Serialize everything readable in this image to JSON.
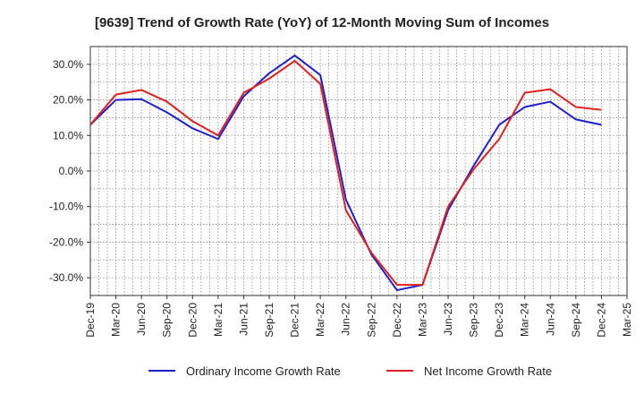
{
  "chart_data": {
    "type": "line",
    "title": "[9639]  Trend of Growth Rate (YoY) of 12-Month Moving Sum of Incomes",
    "xlabel": "",
    "ylabel": "",
    "ylim": [
      -35,
      35
    ],
    "y_ticks": [
      -30,
      -20,
      -10,
      0,
      10,
      20,
      30
    ],
    "y_tick_labels": [
      "-30.0%",
      "-20.0%",
      "-10.0%",
      "0.0%",
      "10.0%",
      "20.0%",
      "30.0%"
    ],
    "x_tick_labels": [
      "Dec-19",
      "Mar-20",
      "Jun-20",
      "Sep-20",
      "Dec-20",
      "Mar-21",
      "Jun-21",
      "Sep-21",
      "Dec-21",
      "Mar-22",
      "Jun-22",
      "Sep-22",
      "Dec-22",
      "Mar-23",
      "Jun-23",
      "Sep-23",
      "Dec-23",
      "Mar-24",
      "Jun-24",
      "Sep-24",
      "Dec-24",
      "Mar-25"
    ],
    "grid": true,
    "legend_position": "bottom",
    "series": [
      {
        "name": "Ordinary Income Growth Rate",
        "color": "#1f1fcc",
        "x": [
          "Dec-19",
          "Mar-20",
          "Jun-20",
          "Sep-20",
          "Dec-20",
          "Mar-21",
          "Jun-21",
          "Sep-21",
          "Dec-21",
          "Mar-22",
          "Jun-22",
          "Sep-22",
          "Dec-22",
          "Mar-23",
          "Jun-23",
          "Sep-23",
          "Dec-23",
          "Mar-24",
          "Jun-24",
          "Sep-24",
          "Dec-24"
        ],
        "values": [
          13.0,
          20.0,
          20.2,
          16.5,
          12.0,
          9.0,
          21.0,
          27.5,
          32.5,
          27.0,
          -8.0,
          -23.5,
          -33.5,
          -32.0,
          -11.0,
          1.5,
          13.0,
          18.0,
          19.5,
          14.5,
          13.0
        ]
      },
      {
        "name": "Net Income Growth Rate",
        "color": "#e02020",
        "x": [
          "Dec-19",
          "Mar-20",
          "Jun-20",
          "Sep-20",
          "Dec-20",
          "Mar-21",
          "Jun-21",
          "Sep-21",
          "Dec-21",
          "Mar-22",
          "Jun-22",
          "Sep-22",
          "Dec-22",
          "Mar-23",
          "Jun-23",
          "Sep-23",
          "Dec-23",
          "Mar-24",
          "Jun-24",
          "Sep-24",
          "Dec-24"
        ],
        "values": [
          13.0,
          21.5,
          22.8,
          19.5,
          14.0,
          10.0,
          22.0,
          26.0,
          31.0,
          24.5,
          -11.0,
          -23.0,
          -32.0,
          -32.0,
          -10.0,
          0.5,
          9.0,
          22.0,
          23.0,
          18.0,
          17.2
        ]
      }
    ]
  }
}
